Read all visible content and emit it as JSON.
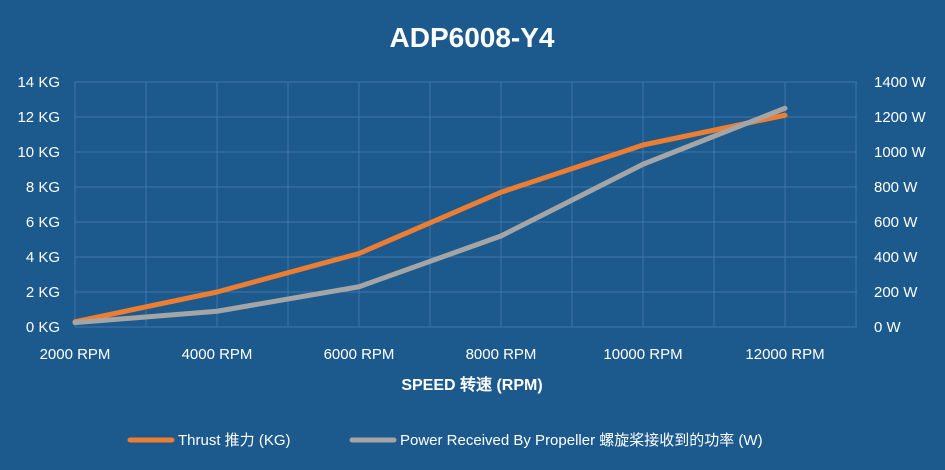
{
  "chart_data": {
    "type": "line",
    "title": "ADP6008-Y4",
    "xlabel": "SPEED 转速 (RPM)",
    "categories": [
      "2000 RPM",
      "4000 RPM",
      "6000 RPM",
      "8000 RPM",
      "10000 RPM",
      "12000 RPM"
    ],
    "y_left": {
      "ticks": [
        "0 KG",
        "2 KG",
        "4 KG",
        "6 KG",
        "8 KG",
        "10 KG",
        "12 KG",
        "14 KG"
      ],
      "range": [
        0,
        14
      ]
    },
    "y_right": {
      "ticks": [
        "0 W",
        "200 W",
        "400 W",
        "600 W",
        "800 W",
        "1000 W",
        "1200 W",
        "1400 W"
      ],
      "range": [
        0,
        1400
      ]
    },
    "series": [
      {
        "name": "Thrust 推力 (KG)",
        "axis": "left",
        "color": "#ed7d31",
        "values": [
          0.3,
          2.0,
          4.2,
          7.7,
          10.4,
          12.1
        ]
      },
      {
        "name": "Power Received By Propeller 螺旋桨接收到的功率 (W)",
        "axis": "right",
        "color": "#a5a5a5",
        "values": [
          25,
          90,
          230,
          520,
          930,
          1250
        ]
      }
    ],
    "grid": true,
    "legend_position": "bottom"
  }
}
